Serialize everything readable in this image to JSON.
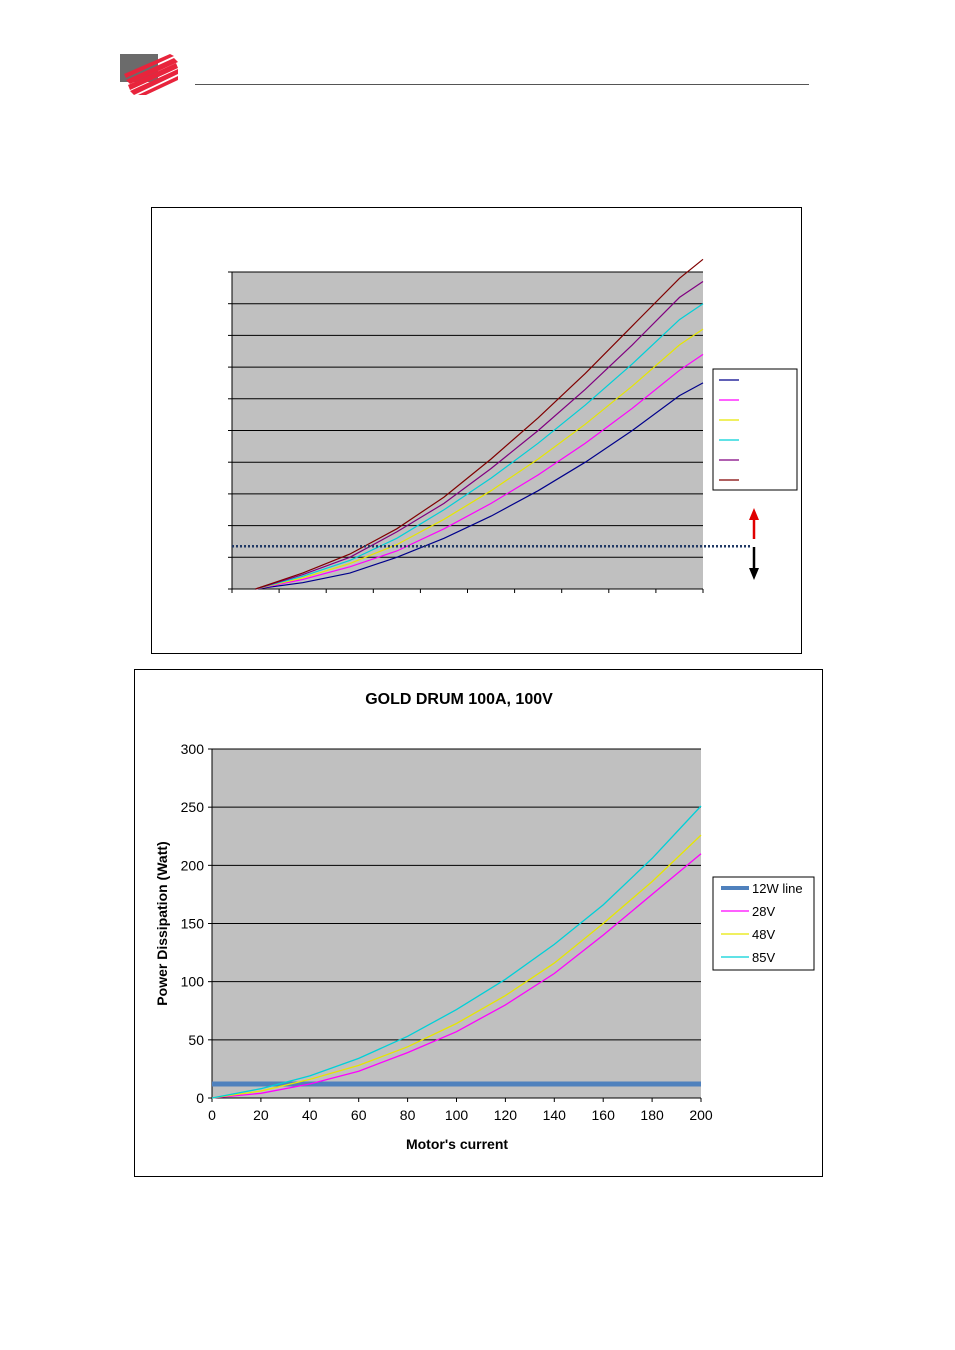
{
  "header": {
    "logo_icon": "company-logo-icon"
  },
  "charts": [
    {
      "id": "chart1",
      "chart_data": {
        "type": "line",
        "title": "",
        "xlabel": "",
        "ylabel": "",
        "x": [
          0,
          10,
          20,
          30,
          40,
          50,
          60,
          70,
          80,
          90,
          95
        ],
        "xlim": [
          -5,
          95
        ],
        "ylim": [
          0,
          100
        ],
        "y_ticks": [
          0,
          10,
          20,
          30,
          40,
          50,
          60,
          70,
          80,
          90,
          100
        ],
        "x_ticks": [
          -5,
          5,
          15,
          25,
          35,
          45,
          55,
          65,
          75,
          85,
          95
        ],
        "show_tick_labels": false,
        "grid": true,
        "legend": "right",
        "threshold_line": {
          "y": 13.5,
          "color": "#1f3864",
          "style": "dotted"
        },
        "series": [
          {
            "color": "#00008b",
            "values": [
              0,
              2,
              5,
              10,
              16,
              23,
              31,
              40,
              50,
              61,
              65
            ]
          },
          {
            "color": "#ff00ff",
            "values": [
              0,
              3,
              7,
              12,
              19,
              27,
              36,
              46,
              57,
              69,
              74
            ]
          },
          {
            "color": "#e6e600",
            "values": [
              0,
              3.5,
              8,
              14,
              22,
              31,
              41,
              52,
              64,
              77,
              82
            ]
          },
          {
            "color": "#00d0d8",
            "values": [
              0,
              4,
              9,
              16,
              25,
              35,
              46,
              58,
              71,
              85,
              90
            ]
          },
          {
            "color": "#800080",
            "values": [
              0,
              4.5,
              10,
              18,
              27,
              38,
              50,
              63,
              77,
              92,
              97
            ]
          },
          {
            "color": "#800000",
            "values": [
              0,
              5,
              11,
              19,
              29,
              41,
              54,
              68,
              83,
              98,
              104
            ]
          }
        ]
      }
    },
    {
      "id": "chart2",
      "chart_data": {
        "type": "line",
        "title": "GOLD DRUM 100A, 100V",
        "xlabel": "Motor's current",
        "ylabel": "Power Dissipation (Watt)",
        "x": [
          0,
          20,
          40,
          60,
          80,
          100,
          120,
          140,
          160,
          180,
          200
        ],
        "xlim": [
          0,
          200
        ],
        "ylim": [
          0,
          300
        ],
        "x_ticks": [
          0,
          20,
          40,
          60,
          80,
          100,
          120,
          140,
          160,
          180,
          200
        ],
        "y_ticks": [
          0,
          50,
          100,
          150,
          200,
          250,
          300
        ],
        "grid": true,
        "legend": "right",
        "series": [
          {
            "name": "12W line",
            "color": "#4f81bd",
            "width": 5,
            "values": [
              12,
              12,
              12,
              12,
              12,
              12,
              12,
              12,
              12,
              12,
              12
            ]
          },
          {
            "name": "28V",
            "color": "#ff00ff",
            "width": 1.3,
            "values": [
              0,
              4,
              12,
              23,
              39,
              57,
              80,
              107,
              140,
              175,
              210
            ]
          },
          {
            "name": "48V",
            "color": "#e6e600",
            "width": 1.3,
            "values": [
              0,
              6,
              16,
              28,
              44,
              64,
              88,
              116,
              150,
              186,
              226
            ]
          },
          {
            "name": "85V",
            "color": "#00d0d8",
            "width": 1.3,
            "values": [
              0,
              8,
              19,
              34,
              53,
              76,
              102,
              132,
              166,
              206,
              251
            ]
          }
        ]
      }
    }
  ]
}
